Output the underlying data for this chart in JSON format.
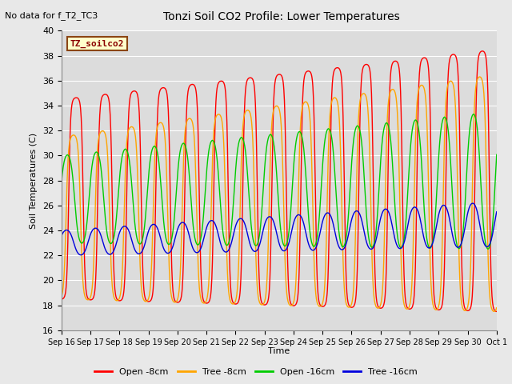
{
  "title": "Tonzi Soil CO2 Profile: Lower Temperatures",
  "no_data_text": "No data for f_T2_TC3",
  "legend_box_text": "TZ_soilco2",
  "ylabel": "Soil Temperatures (C)",
  "xlabel": "Time",
  "ylim": [
    16,
    40
  ],
  "yticks": [
    16,
    18,
    20,
    22,
    24,
    26,
    28,
    30,
    32,
    34,
    36,
    38,
    40
  ],
  "num_points": 1500,
  "lines": {
    "open_8cm": {
      "label": "Open -8cm",
      "color": "#ff0000",
      "amp_base": 8.0,
      "amp_growth": 2.5,
      "mean_base": 26.5,
      "mean_growth": 1.5,
      "phase": -1.57,
      "sharpness": 2.5
    },
    "tree_8cm": {
      "label": "Tree -8cm",
      "color": "#ffa500",
      "amp_base": 6.5,
      "amp_growth": 3.0,
      "mean_base": 25.0,
      "mean_growth": 2.0,
      "phase": -1.0,
      "sharpness": 2.0
    },
    "open_16cm": {
      "label": "Open -16cm",
      "color": "#00cc00",
      "amp_base": 3.5,
      "amp_growth": 2.0,
      "mean_base": 26.5,
      "mean_growth": 1.5,
      "phase": 0.3,
      "sharpness": 1.0
    },
    "tree_16cm": {
      "label": "Tree -16cm",
      "color": "#0000dd",
      "amp_base": 1.0,
      "amp_growth": 0.8,
      "mean_base": 23.0,
      "mean_growth": 1.5,
      "phase": 0.5,
      "sharpness": 0.8
    }
  },
  "bg_color": "#e8e8e8",
  "grid_color": "#ffffff",
  "plot_bg": "#dcdcdc",
  "tick_labels": [
    "Sep 16",
    "Sep 17",
    "Sep 18",
    "Sep 19",
    "Sep 20",
    "Sep 21",
    "Sep 22",
    "Sep 23",
    "Sep 24",
    "Sep 25",
    "Sep 26",
    "Sep 27",
    "Sep 28",
    "Sep 29",
    "Sep 30",
    "Oct 1"
  ]
}
